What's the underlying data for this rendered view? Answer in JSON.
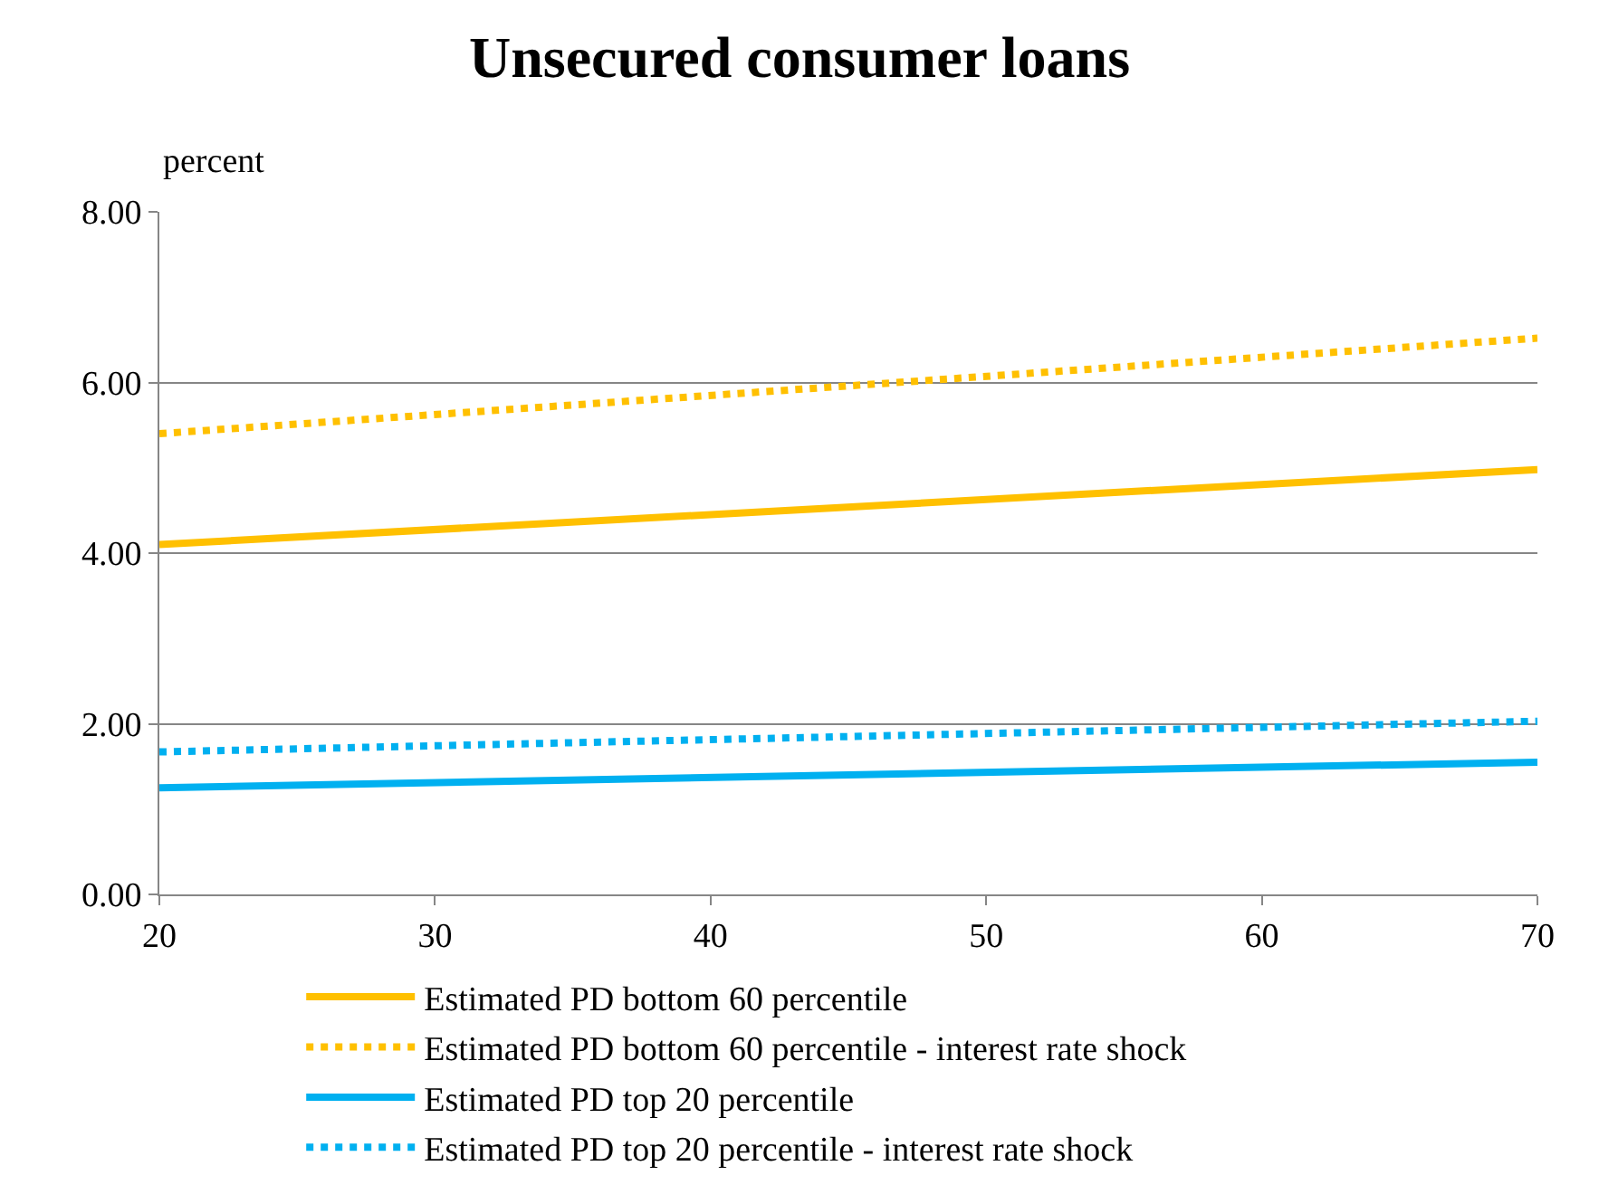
{
  "chart_data": {
    "type": "line",
    "title": "Unsecured consumer loans",
    "ylabel": "percent",
    "x": [
      20,
      70
    ],
    "series": [
      {
        "name": "Estimated PD bottom 60 percentile",
        "color": "#ffc000",
        "values": [
          4.1,
          4.98
        ],
        "line_style": "solid"
      },
      {
        "name": "Estimated PD bottom 60 percentile - interest rate shock",
        "color": "#ffc000",
        "values": [
          5.4,
          6.52
        ],
        "line_style": "dotted"
      },
      {
        "name": "Estimated PD top 20 percentile",
        "color": "#00b0f0",
        "values": [
          1.25,
          1.55
        ],
        "line_style": "solid"
      },
      {
        "name": "Estimated PD top 20 percentile - interest rate shock",
        "color": "#00b0f0",
        "values": [
          1.67,
          2.03
        ],
        "line_style": "dotted"
      }
    ],
    "xlim": [
      20,
      70
    ],
    "xticks": [
      20,
      30,
      40,
      50,
      60,
      70
    ],
    "ylim": [
      0,
      8
    ],
    "yticks": [
      {
        "value": 0,
        "label": "0.00"
      },
      {
        "value": 2,
        "label": "2.00"
      },
      {
        "value": 4,
        "label": "4.00"
      },
      {
        "value": 6,
        "label": "6.00"
      },
      {
        "value": 8,
        "label": "8.00"
      }
    ],
    "grid": "y",
    "legend": "bottom",
    "marker": "none"
  }
}
